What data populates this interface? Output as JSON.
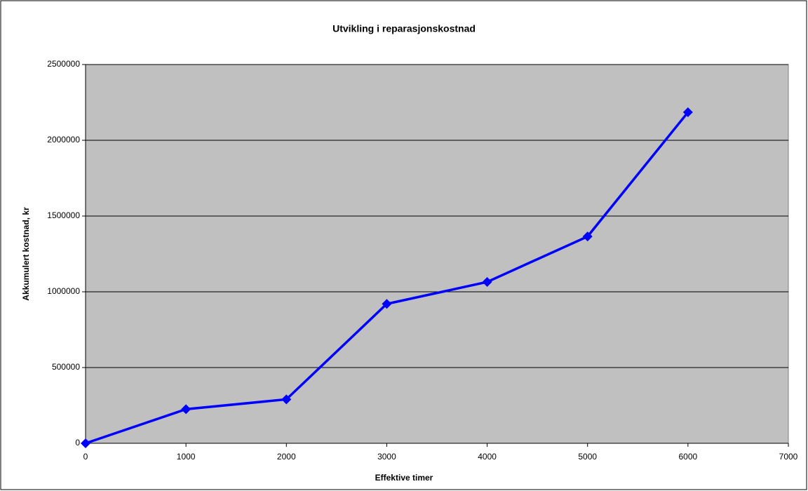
{
  "chart_data": {
    "type": "line",
    "title": "Utvikling i reparasjonskostnad",
    "x_label": "Effektive timer",
    "y_label": "Akkumulert kostnad, kr",
    "x": [
      0,
      1000,
      2000,
      3000,
      4000,
      5000,
      6000
    ],
    "series": [
      {
        "color": "#0000ff",
        "values": [
          0,
          225000,
          290000,
          920000,
          1065000,
          1365000,
          2185000
        ]
      }
    ],
    "xlim": [
      0,
      7000
    ],
    "xticks": [
      0,
      1000,
      2000,
      3000,
      4000,
      5000,
      6000,
      7000
    ],
    "ylim": [
      0,
      2500000
    ],
    "yticks": [
      0,
      500000,
      1000000,
      1500000,
      2000000,
      2500000
    ],
    "grid": true
  }
}
